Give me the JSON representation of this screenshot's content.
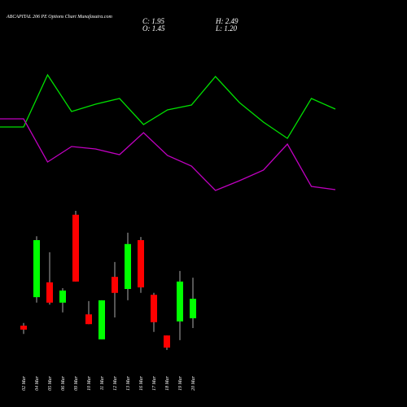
{
  "chart_data": {
    "type": "candlestick",
    "title": "ABCAPITAL 206  PE Options  Chart Munafasutra.com",
    "info": [
      "C: 1.95",
      "H: 2.49",
      "O: 1.45",
      "L: 1.20"
    ],
    "categories": [
      "02 Mar",
      "04 Mar",
      "05 Mar",
      "06 Mar",
      "09 Mar",
      "10 Mar",
      "11 Mar",
      "12 Mar",
      "13 Mar",
      "16 Mar",
      "17 Mar",
      "18 Mar",
      "19 Mar",
      "20 Mar"
    ],
    "open": [
      1.26,
      1.99,
      2.37,
      1.85,
      4.1,
      1.55,
      0.91,
      2.51,
      2.2,
      3.45,
      2.05,
      1.01,
      1.37,
      1.45
    ],
    "high": [
      1.33,
      3.55,
      3.14,
      2.22,
      4.2,
      1.89,
      1.91,
      2.89,
      3.64,
      3.53,
      2.1,
      1.01,
      2.66,
      2.49
    ],
    "low": [
      1.05,
      1.85,
      1.8,
      1.6,
      2.39,
      1.3,
      0.91,
      1.47,
      1.91,
      2.1,
      1.1,
      0.64,
      0.89,
      1.2
    ],
    "close": [
      1.16,
      3.45,
      1.85,
      2.16,
      2.39,
      1.3,
      1.91,
      2.1,
      3.35,
      2.24,
      1.35,
      0.7,
      2.39,
      1.95
    ],
    "up_color": "#00ff00",
    "down_color": "#ff0000",
    "lines": [
      {
        "color": "#00e000",
        "values": [
          94,
          158,
          113,
          122,
          129,
          97,
          115,
          121,
          156,
          124,
          100,
          80,
          129,
          116
        ]
      },
      {
        "color": "#c000c0",
        "values": [
          104,
          51,
          70,
          67,
          60,
          87,
          59,
          46,
          16,
          28,
          41,
          73,
          21,
          17
        ]
      }
    ]
  }
}
